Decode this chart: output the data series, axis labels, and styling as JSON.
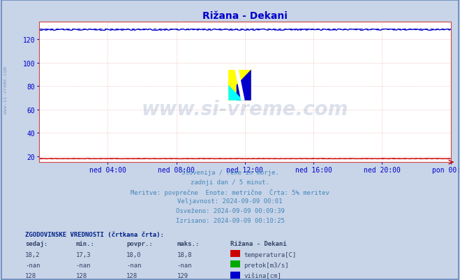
{
  "title": "Rižana - Dekani",
  "title_color": "#0000cc",
  "plot_bg_color": "#ffffff",
  "fig_bg_color": "#c8d4e8",
  "ylim": [
    15,
    135
  ],
  "yticks": [
    20,
    40,
    60,
    80,
    100,
    120
  ],
  "n_points": 289,
  "temp_value": 18.0,
  "temp_color": "#cc0000",
  "pretok_color": "#00aa00",
  "visina_value": 128.0,
  "visina_color": "#0000cc",
  "watermark_text": "www.si-vreme.com",
  "watermark_color": "#1a3a8a",
  "watermark_alpha": 0.15,
  "left_text": "www.si-vreme.com",
  "left_text_color": "#7799bb",
  "subtitle_lines": [
    "Slovenija / reke in morje.",
    "zadnji dan / 5 minut.",
    "Meritve: povprečne  Enote: metrične  Črta: 5% meritev",
    "Veljavnost: 2024-09-09 00:01",
    "Osveženo: 2024-09-09 00:09:39",
    "Izrisano: 2024-09-09 00:10:25"
  ],
  "subtitle_color": "#4488bb",
  "table_header": "ZGODOVINSKE VREDNOSTI (črtkana črta):",
  "table_col_headers": [
    "sedaj:",
    "min.:",
    "povpr.:",
    "maks.:",
    "Rižana - Dekani"
  ],
  "table_rows": [
    [
      "18,2",
      "17,3",
      "18,0",
      "18,8",
      "temperatura[C]",
      "#cc0000"
    ],
    [
      "-nan",
      "-nan",
      "-nan",
      "-nan",
      "pretok[m3/s]",
      "#00aa00"
    ],
    [
      "128",
      "128",
      "128",
      "129",
      "višina[cm]",
      "#0000cc"
    ]
  ],
  "table_color": "#334466",
  "grid_color": "#dd6666",
  "grid_alpha": 0.5,
  "axis_color": "#cc4444",
  "tick_color": "#0000cc",
  "outer_border_color": "#6688bb",
  "xtick_labels": [
    "ned 04:00",
    "ned 08:00",
    "ned 12:00",
    "ned 16:00",
    "ned 20:00",
    "pon 00:00"
  ],
  "xtick_norm": [
    0.1667,
    0.3333,
    0.5,
    0.6667,
    0.8333,
    1.0
  ]
}
